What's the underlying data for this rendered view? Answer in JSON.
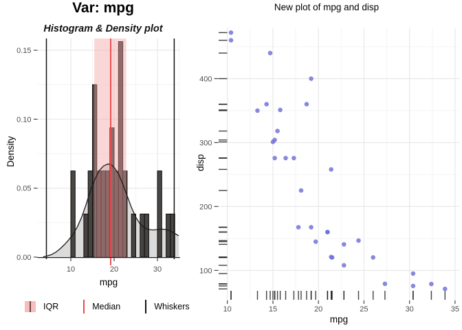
{
  "left_plot": {
    "title": "Var: mpg",
    "subtitle": "Histogram & Density plot",
    "xlabel": "mpg",
    "ylabel": "Density"
  },
  "right_plot": {
    "title": "New plot of mpg and disp",
    "xlabel": "mpg",
    "ylabel": "disp"
  },
  "legend": {
    "items": [
      {
        "label": "IQR"
      },
      {
        "label": "Median"
      },
      {
        "label": "Whiskers"
      }
    ]
  },
  "colors": {
    "point": "#6e6ed8",
    "iqr_fill": "#f4a0a0",
    "iqr_key": "#f7bcbc",
    "iqr_key_line": "#6e4848",
    "median": "#ec4949",
    "whisker": "#111111",
    "bar_fill": "#3a3634",
    "bar_stroke": "#0d0d0d",
    "density_fill": "#d2d2d2",
    "density_line": "#1a1a1a",
    "grid_major": "#e6e6e6",
    "grid_minor": "#f3f3f3",
    "axis_text": "#4d4d4d",
    "axis_line": "#222222"
  },
  "chart_data": [
    {
      "type": "bar",
      "subtype": "histogram_with_density",
      "variable": "mpg",
      "title": "Var: mpg",
      "subtitle": "Histogram & Density plot",
      "xlabel": "mpg",
      "ylabel": "Density",
      "xlim": [
        2.3,
        35.2
      ],
      "ylim": [
        0,
        0.1585
      ],
      "xticks_major": [
        10,
        20,
        30
      ],
      "xticks_minor": [
        5,
        15,
        25,
        35
      ],
      "yticks_major": [
        0,
        0.05,
        0.1,
        0.15
      ],
      "ytick_labels": [
        "0.00",
        "0.05",
        "0.10",
        "0.15"
      ],
      "yticks_minor": [
        0.025,
        0.075,
        0.125
      ],
      "binwidth": 1,
      "histogram_bars": [
        {
          "x_left": 10,
          "density": 0.0625
        },
        {
          "x_left": 13,
          "density": 0.03125
        },
        {
          "x_left": 14,
          "density": 0.0625
        },
        {
          "x_left": 15,
          "density": 0.125
        },
        {
          "x_left": 16,
          "density": 0.0625
        },
        {
          "x_left": 17,
          "density": 0.0625
        },
        {
          "x_left": 18,
          "density": 0.0625
        },
        {
          "x_left": 19,
          "density": 0.09375
        },
        {
          "x_left": 20,
          "density": 0.0625
        },
        {
          "x_left": 21,
          "density": 0.15625
        },
        {
          "x_left": 22,
          "density": 0.0625
        },
        {
          "x_left": 24,
          "density": 0.03125
        },
        {
          "x_left": 26,
          "density": 0.03125
        },
        {
          "x_left": 27,
          "density": 0.03125
        },
        {
          "x_left": 30,
          "density": 0.0625
        },
        {
          "x_left": 32,
          "density": 0.03125
        },
        {
          "x_left": 33,
          "density": 0.03125
        }
      ],
      "density_curve": [
        [
          3.6,
          0.0002
        ],
        [
          4.5,
          0.0008
        ],
        [
          5.5,
          0.0018
        ],
        [
          6.5,
          0.0035
        ],
        [
          7.5,
          0.006
        ],
        [
          8.5,
          0.009
        ],
        [
          9.5,
          0.0125
        ],
        [
          10.5,
          0.0165
        ],
        [
          11.5,
          0.022
        ],
        [
          12.5,
          0.029
        ],
        [
          13.5,
          0.038
        ],
        [
          14.5,
          0.048
        ],
        [
          15.5,
          0.056
        ],
        [
          16.5,
          0.0625
        ],
        [
          17.5,
          0.066
        ],
        [
          18.5,
          0.0675
        ],
        [
          19.3,
          0.0672
        ],
        [
          20,
          0.065
        ],
        [
          21,
          0.0605
        ],
        [
          22,
          0.053
        ],
        [
          23,
          0.0445
        ],
        [
          24,
          0.036
        ],
        [
          25,
          0.029
        ],
        [
          26,
          0.024
        ],
        [
          27,
          0.0213
        ],
        [
          28,
          0.02
        ],
        [
          29,
          0.0197
        ],
        [
          30,
          0.02
        ],
        [
          31,
          0.0203
        ],
        [
          32,
          0.02
        ],
        [
          33,
          0.019
        ],
        [
          34,
          0.0172
        ],
        [
          34.9,
          0.0155
        ]
      ],
      "stats": {
        "median": 19.2,
        "q1": 15.425,
        "q3": 22.8,
        "whisker_low": 4.36,
        "whisker_high": 33.86
      },
      "legend_entries": [
        "IQR",
        "Median",
        "Whiskers"
      ]
    },
    {
      "type": "scatter",
      "title": "New plot of mpg and disp",
      "xlabel": "mpg",
      "ylabel": "disp",
      "xlim": [
        9,
        35.5
      ],
      "ylim": [
        53,
        480
      ],
      "xticks": [
        10,
        15,
        20,
        25,
        30,
        35
      ],
      "xticks_minor": [
        12.5,
        17.5,
        22.5,
        27.5,
        32.5
      ],
      "yticks": [
        100,
        200,
        300,
        400
      ],
      "yticks_minor": [
        150,
        250,
        350,
        450
      ],
      "rug": "x and y axes",
      "points": [
        [
          21,
          160
        ],
        [
          21,
          160
        ],
        [
          22.8,
          108
        ],
        [
          21.4,
          258
        ],
        [
          18.7,
          360
        ],
        [
          18.1,
          225
        ],
        [
          14.3,
          360
        ],
        [
          24.4,
          146.7
        ],
        [
          22.8,
          140.8
        ],
        [
          19.2,
          167.6
        ],
        [
          17.8,
          167.6
        ],
        [
          16.4,
          275.8
        ],
        [
          17.3,
          275.8
        ],
        [
          15.2,
          275.8
        ],
        [
          10.4,
          472
        ],
        [
          10.4,
          460
        ],
        [
          14.7,
          440
        ],
        [
          32.4,
          78.7
        ],
        [
          30.4,
          75.7
        ],
        [
          33.9,
          71.1
        ],
        [
          21.5,
          120.1
        ],
        [
          15.5,
          318
        ],
        [
          15.2,
          304
        ],
        [
          13.3,
          350
        ],
        [
          19.2,
          400
        ],
        [
          27.3,
          79
        ],
        [
          26,
          120.3
        ],
        [
          30.4,
          95.1
        ],
        [
          15.8,
          351
        ],
        [
          19.7,
          145
        ],
        [
          15,
          301
        ],
        [
          21.4,
          121
        ]
      ]
    }
  ]
}
